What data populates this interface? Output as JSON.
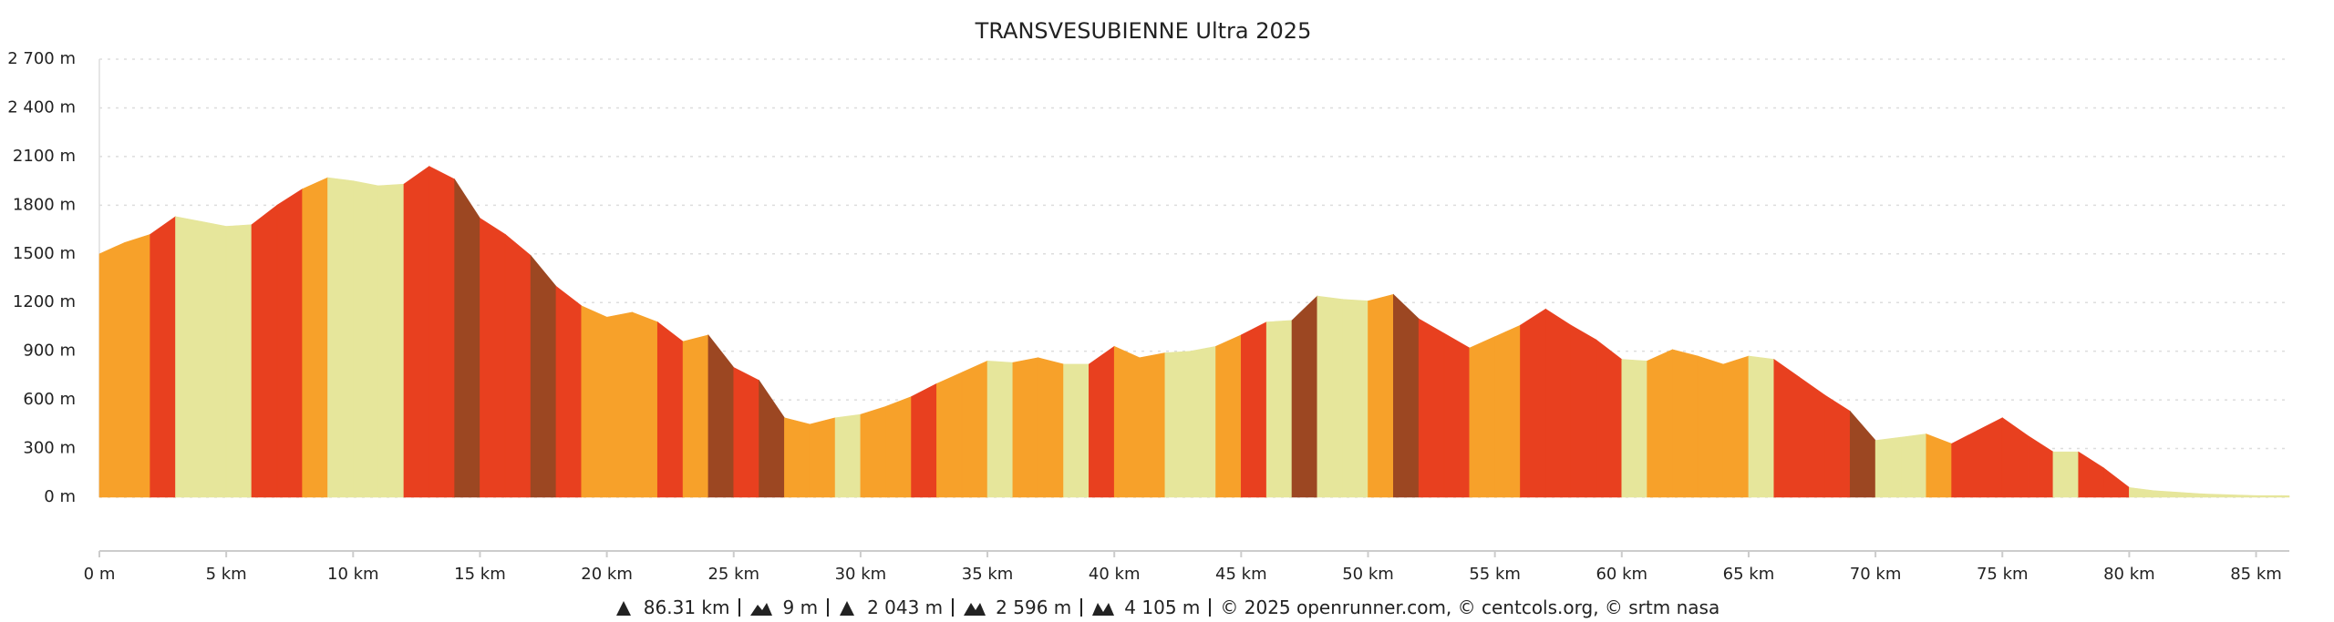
{
  "chart_data": {
    "type": "area",
    "title": "TRANSVESUBIENNE Ultra 2025",
    "x": [
      0,
      1,
      2,
      3,
      4,
      5,
      6,
      7,
      8,
      9,
      10,
      11,
      12,
      13,
      14,
      15,
      16,
      17,
      18,
      19,
      20,
      21,
      22,
      23,
      24,
      25,
      26,
      27,
      28,
      29,
      30,
      31,
      32,
      33,
      34,
      35,
      36,
      37,
      38,
      39,
      40,
      41,
      42,
      43,
      44,
      45,
      46,
      47,
      48,
      49,
      50,
      51,
      52,
      53,
      54,
      55,
      56,
      57,
      58,
      59,
      60,
      61,
      62,
      63,
      64,
      65,
      66,
      67,
      68,
      69,
      70,
      71,
      72,
      73,
      74,
      75,
      76,
      77,
      78,
      79,
      80,
      81,
      82,
      83,
      84,
      85,
      86,
      86.31
    ],
    "values": [
      1500,
      1570,
      1620,
      1730,
      1700,
      1670,
      1680,
      1800,
      1900,
      1970,
      1950,
      1920,
      1930,
      2040,
      1960,
      1720,
      1620,
      1490,
      1300,
      1180,
      1110,
      1140,
      1080,
      960,
      1000,
      800,
      720,
      490,
      450,
      490,
      510,
      560,
      620,
      700,
      770,
      840,
      830,
      860,
      820,
      820,
      930,
      860,
      890,
      900,
      930,
      1000,
      1080,
      1090,
      1240,
      1220,
      1210,
      1250,
      1100,
      1010,
      920,
      990,
      1060,
      1160,
      1060,
      970,
      850,
      840,
      910,
      870,
      820,
      870,
      850,
      740,
      630,
      530,
      350,
      370,
      390,
      330,
      410,
      490,
      380,
      280,
      280,
      180,
      60,
      40,
      30,
      20,
      15,
      10,
      10,
      9
    ],
    "segment_colors": [
      "#f7a12a",
      "#f7a12a",
      "#e8401f",
      "#e6e69b",
      "#e6e69b",
      "#e6e69b",
      "#e8401f",
      "#e8401f",
      "#f7a12a",
      "#e6e69b",
      "#e6e69b",
      "#e6e69b",
      "#e8401f",
      "#e8401f",
      "#9c4722",
      "#e8401f",
      "#e8401f",
      "#9c4722",
      "#e8401f",
      "#f7a12a",
      "#f7a12a",
      "#f7a12a",
      "#e8401f",
      "#f7a12a",
      "#9c4722",
      "#e8401f",
      "#9c4722",
      "#f7a12a",
      "#f7a12a",
      "#e6e69b",
      "#f7a12a",
      "#f7a12a",
      "#e8401f",
      "#f7a12a",
      "#f7a12a",
      "#e6e69b",
      "#f7a12a",
      "#f7a12a",
      "#e6e69b",
      "#e8401f",
      "#f7a12a",
      "#f7a12a",
      "#e6e69b",
      "#e6e69b",
      "#f7a12a",
      "#e8401f",
      "#e6e69b",
      "#9c4722",
      "#e6e69b",
      "#e6e69b",
      "#f7a12a",
      "#9c4722",
      "#e8401f",
      "#e8401f",
      "#f7a12a",
      "#f7a12a",
      "#e8401f",
      "#e8401f",
      "#e8401f",
      "#e8401f",
      "#e6e69b",
      "#f7a12a",
      "#f7a12a",
      "#f7a12a",
      "#f7a12a",
      "#e6e69b",
      "#e8401f",
      "#e8401f",
      "#e8401f",
      "#9c4722",
      "#e6e69b",
      "#e6e69b",
      "#f7a12a",
      "#e8401f",
      "#e8401f",
      "#e8401f",
      "#e8401f",
      "#e6e69b",
      "#e8401f",
      "#e8401f",
      "#e6e69b",
      "#e6e69b",
      "#e6e69b",
      "#e6e69b",
      "#e6e69b",
      "#e6e69b",
      "#e6e69b"
    ],
    "xlim": [
      0,
      86.31
    ],
    "ylim": [
      0,
      2700
    ],
    "xticks": [
      {
        "value": 0,
        "label": "0 m"
      },
      {
        "value": 5,
        "label": "5 km"
      },
      {
        "value": 10,
        "label": "10 km"
      },
      {
        "value": 15,
        "label": "15 km"
      },
      {
        "value": 20,
        "label": "20 km"
      },
      {
        "value": 25,
        "label": "25 km"
      },
      {
        "value": 30,
        "label": "30 km"
      },
      {
        "value": 35,
        "label": "35 km"
      },
      {
        "value": 40,
        "label": "40 km"
      },
      {
        "value": 45,
        "label": "45 km"
      },
      {
        "value": 50,
        "label": "50 km"
      },
      {
        "value": 55,
        "label": "55 km"
      },
      {
        "value": 60,
        "label": "60 km"
      },
      {
        "value": 65,
        "label": "65 km"
      },
      {
        "value": 70,
        "label": "70 km"
      },
      {
        "value": 75,
        "label": "75 km"
      },
      {
        "value": 80,
        "label": "80 km"
      },
      {
        "value": 85,
        "label": "85 km"
      }
    ],
    "yticks": [
      {
        "value": 0,
        "label": "0 m"
      },
      {
        "value": 300,
        "label": "300 m"
      },
      {
        "value": 600,
        "label": "600 m"
      },
      {
        "value": 900,
        "label": "900 m"
      },
      {
        "value": 1200,
        "label": "1200 m"
      },
      {
        "value": 1500,
        "label": "1500 m"
      },
      {
        "value": 1800,
        "label": "1800 m"
      },
      {
        "value": 2100,
        "label": "2100 m"
      },
      {
        "value": 2400,
        "label": "2 400 m"
      },
      {
        "value": 2700,
        "label": "2 700 m"
      }
    ],
    "grid": true,
    "footer": [
      "86.31 km",
      "9 m",
      "2 043 m",
      "2 596 m",
      "4 105 m",
      "© 2025 openrunner.com, © centcols.org, © srtm nasa"
    ]
  }
}
